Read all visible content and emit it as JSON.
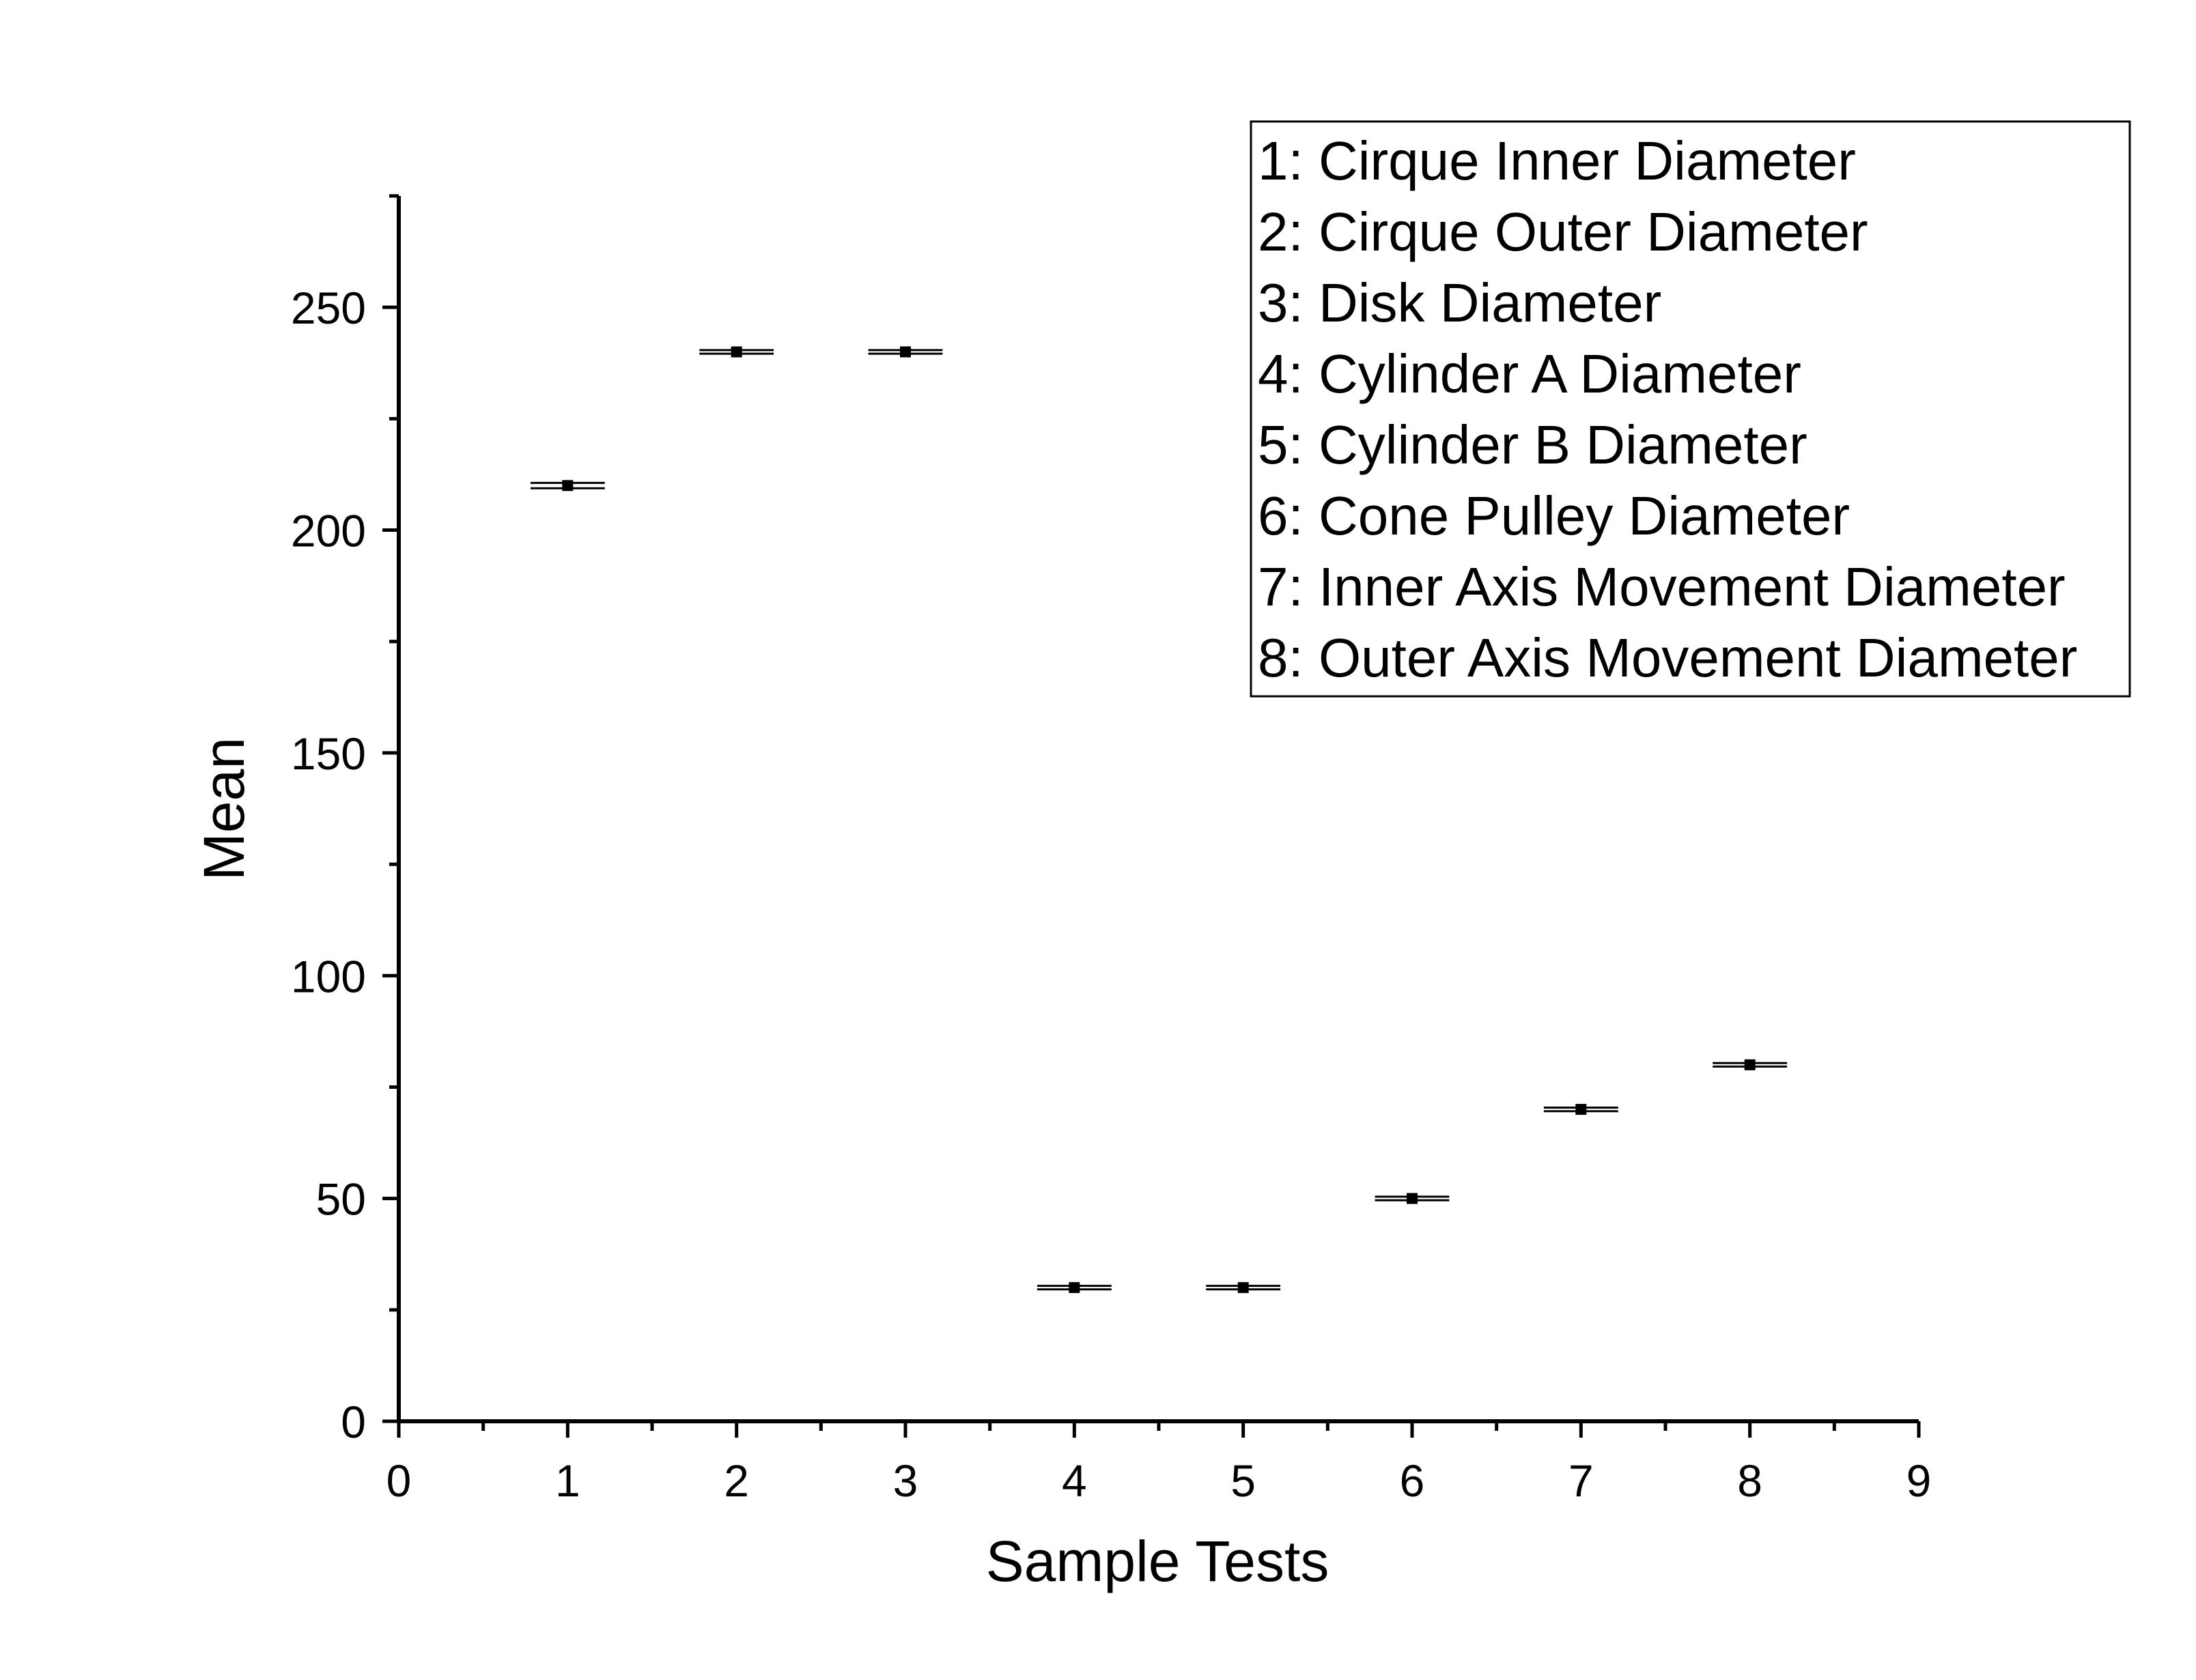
{
  "chart_data": {
    "type": "scatter",
    "title": "",
    "xlabel": "Sample Tests",
    "ylabel": "Mean",
    "xlim": [
      0,
      9
    ],
    "ylim": [
      0,
      275
    ],
    "x_ticks": [
      0,
      1,
      2,
      3,
      4,
      5,
      6,
      7,
      8,
      9
    ],
    "y_ticks": [
      0,
      50,
      100,
      150,
      200,
      250
    ],
    "grid": false,
    "legend_position": "top-right",
    "legend": [
      "1: Cirque Inner Diameter",
      "2: Cirque Outer Diameter",
      "3: Disk Diameter",
      "4: Cylinder A Diameter",
      "5: Cylinder B Diameter",
      "6: Cone Pulley Diameter",
      "7: Inner Axis Movement Diameter",
      "8: Outer Axis Movement Diameter"
    ],
    "points": [
      {
        "x": 1,
        "y": 210,
        "err": 0.6
      },
      {
        "x": 2,
        "y": 240,
        "err": 0.4
      },
      {
        "x": 3,
        "y": 240,
        "err": 0.4
      },
      {
        "x": 4,
        "y": 30,
        "err": 0.4
      },
      {
        "x": 5,
        "y": 30,
        "err": 0.4
      },
      {
        "x": 6,
        "y": 50,
        "err": 0.4
      },
      {
        "x": 7,
        "y": 70,
        "err": 0.4
      },
      {
        "x": 8,
        "y": 80,
        "err": 0.4
      }
    ],
    "marker_color": "#000000"
  }
}
